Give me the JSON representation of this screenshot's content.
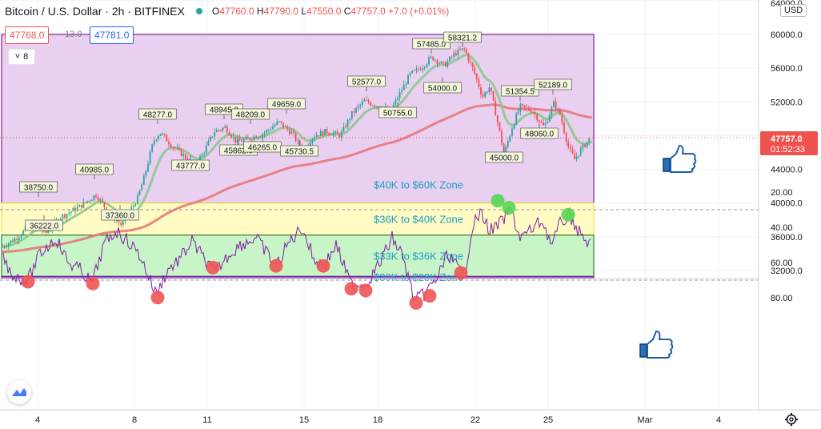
{
  "header": {
    "title": "Bitcoin / U.S. Dollar · 2h · BITFINEX",
    "open_label": "O",
    "open": "47760.0",
    "high_label": "H",
    "high": "47790.0",
    "low_label": "L",
    "low": "47550.0",
    "close_label": "C",
    "close": "47757.0",
    "change": "+7.0 (+0.01%)"
  },
  "trade": {
    "sell": "47768.0",
    "spread": "13.0",
    "buy": "47781.0"
  },
  "indicators_toggle": {
    "count": "8"
  },
  "price_axis": {
    "currency": "USD",
    "ticks": [
      "64000.0",
      "60000.0",
      "56000.0",
      "52000.0",
      "48000.0",
      "44000.0",
      "40000.0",
      "36000.0",
      "32000.0"
    ],
    "current_price": "47757.0",
    "countdown": "01:52:33"
  },
  "rsi_axis": {
    "ticks": [
      "80.00",
      "60.00",
      "40.00",
      "20.00"
    ]
  },
  "time_axis": {
    "ticks": [
      "4",
      "8",
      "11",
      "15",
      "18",
      "22",
      "25",
      "Mar",
      "4"
    ]
  },
  "zones": [
    {
      "label": "$40K to $60K Zone",
      "fill": "#e9cff0",
      "border": "#7b1fa2"
    },
    {
      "label": "$36K to $40K Zone",
      "fill": "#fffbc2",
      "border": "#f3e23f"
    },
    {
      "label": "$33K to $36K Zone",
      "fill": "#c8f5c8",
      "border": "#2e7d32"
    },
    {
      "label": "$30K to $28K Zone",
      "fill": "#eed6f3",
      "border": "#7b1fa2"
    }
  ],
  "price_labels": [
    "36222.0",
    "38750.0",
    "40985.0",
    "37360.0",
    "48277.0",
    "43777.0",
    "48945.0",
    "45862.0",
    "48209.0",
    "46265.0",
    "49659.0",
    "45730.5",
    "52577.0",
    "50755.0",
    "57485.0",
    "58321.2",
    "54000.0",
    "45000.0",
    "51354.5",
    "52189.0",
    "48060.0"
  ],
  "colors": {
    "up": "#26a69a",
    "down": "#ef5350",
    "ema_fast": "#8bc98f",
    "ema_slow": "#e57373",
    "rsi_line": "#7b1fa2",
    "rsi_band": "#f1e4fb",
    "overbought_dot": "#f05454",
    "oversold_dot": "#55d655"
  },
  "annotation_icons": [
    "thumbs-up-icon",
    "thumbs-up-icon"
  ],
  "chart_data": {
    "type": "line",
    "title": "Bitcoin / U.S. Dollar · 2h · BITFINEX",
    "x": [
      "4",
      "8",
      "11",
      "15",
      "18",
      "22",
      "25"
    ],
    "series": [
      {
        "values": [
          36500,
          40500,
          46500,
          48500,
          51500,
          54500,
          47757
        ]
      }
    ],
    "ylim": [
      30000,
      64000
    ],
    "rsi": {
      "ylim": [
        20,
        85
      ],
      "overbought": 70,
      "oversold": 30,
      "overbought_points": 12,
      "oversold_points": 3
    }
  }
}
